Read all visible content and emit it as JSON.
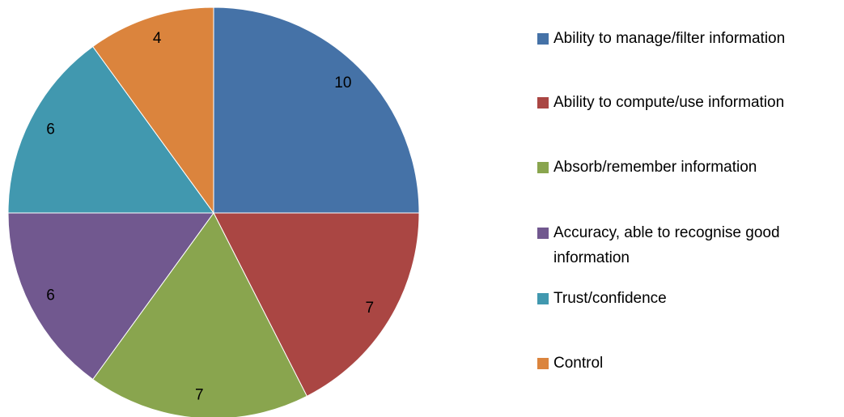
{
  "chart_data": {
    "type": "pie",
    "categories": [
      "Ability to manage/filter information",
      "Ability to compute/use information",
      "Absorb/remember information",
      "Accuracy, able to recognise good information",
      "Trust/confidence",
      "Control"
    ],
    "values": [
      10,
      7,
      7,
      6,
      6,
      4
    ],
    "colors": [
      "#4572a7",
      "#aa4643",
      "#89a54e",
      "#71588f",
      "#4198af",
      "#db843d"
    ],
    "legend": "right"
  }
}
